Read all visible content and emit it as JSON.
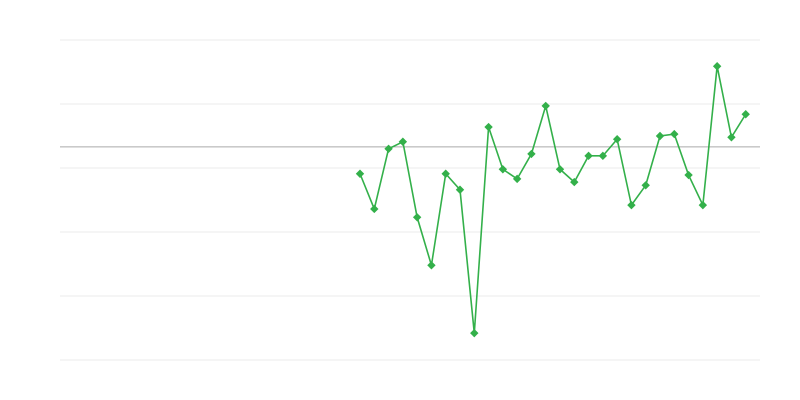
{
  "chart_data": {
    "type": "line",
    "title": "",
    "xlabel": "",
    "ylabel": "",
    "xlim": [
      0,
      49
    ],
    "ylim": [
      0,
      5
    ],
    "grid": true,
    "gridlines_y": [
      0,
      1,
      2,
      3,
      4,
      5
    ],
    "reference_line_y": 3.33,
    "legend": "none",
    "colors": {
      "series": "#33b04a",
      "grid": "#ebebeb",
      "reference": "#aaaaaa"
    },
    "marker": "diamond",
    "series": [
      {
        "x": [
          21,
          22,
          23,
          24,
          25,
          26,
          27,
          28,
          29,
          30,
          31,
          32,
          33,
          34,
          35,
          36,
          37,
          38,
          39,
          40,
          41,
          42,
          43,
          44,
          45,
          46,
          47,
          48
        ],
        "values": [
          2.91,
          2.36,
          3.3,
          3.41,
          2.23,
          1.48,
          2.91,
          2.66,
          0.42,
          3.64,
          2.98,
          2.83,
          3.22,
          3.97,
          2.98,
          2.78,
          3.19,
          3.19,
          3.45,
          2.42,
          2.73,
          3.5,
          3.53,
          2.89,
          2.42,
          4.59,
          3.48,
          3.84
        ]
      }
    ]
  }
}
